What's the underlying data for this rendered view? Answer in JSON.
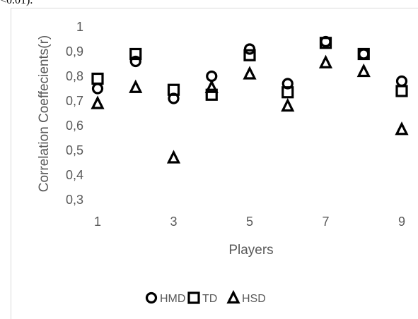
{
  "header_fragment": "<0.01).",
  "chart_data": {
    "type": "scatter",
    "xlabel": "Players",
    "ylabel": "Correlation Coeffecients(r)",
    "x_ticks": [
      "1",
      "3",
      "5",
      "7",
      "9"
    ],
    "y_ticks": [
      "0,3",
      "0,4",
      "0,5",
      "0,6",
      "0,7",
      "0,8",
      "0,9",
      "1"
    ],
    "xlim": [
      1,
      9
    ],
    "ylim": [
      0.3,
      1.0
    ],
    "grid": false,
    "legend_position": "bottom",
    "x": [
      1,
      2,
      3,
      4,
      5,
      6,
      7,
      8,
      9
    ],
    "series": [
      {
        "name": "HMD",
        "marker": "circle",
        "values": [
          0.75,
          0.86,
          0.71,
          0.8,
          0.91,
          0.77,
          0.94,
          0.89,
          0.78
        ]
      },
      {
        "name": "TD",
        "marker": "square",
        "values": [
          0.79,
          0.89,
          0.745,
          0.725,
          0.885,
          0.735,
          0.935,
          0.89,
          0.74
        ]
      },
      {
        "name": "HSD",
        "marker": "triangle",
        "values": [
          0.69,
          0.755,
          0.47,
          0.755,
          0.81,
          0.68,
          0.855,
          0.82,
          0.585
        ]
      }
    ]
  }
}
